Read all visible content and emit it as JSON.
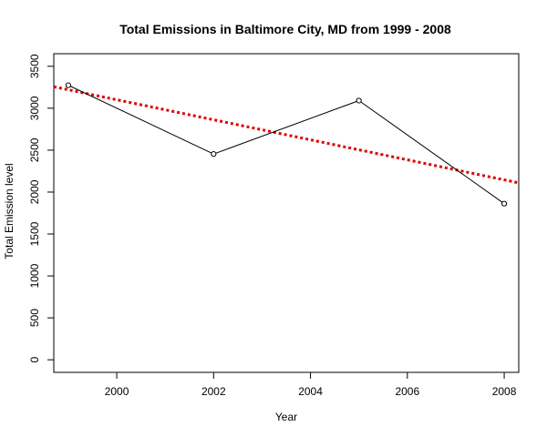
{
  "chart_data": {
    "type": "line",
    "title": "Total Emissions in Baltimore City, MD from 1999 - 2008",
    "xlabel": "Year",
    "ylabel": "Total Emission level",
    "x": [
      1999,
      2002,
      2005,
      2008
    ],
    "series": [
      {
        "values": [
          3274,
          2454,
          3091,
          1862
        ],
        "color": "#000000",
        "style": "line-with-open-circles"
      }
    ],
    "trend_line": {
      "style": "dotted",
      "color": "#dd0000",
      "x": [
        1998.7,
        2008.3
      ],
      "values": [
        3256,
        2110
      ]
    },
    "xlim": [
      1998.7,
      2008.3
    ],
    "ylim": [
      -150,
      3650
    ],
    "x_ticks": [
      2000,
      2002,
      2004,
      2006,
      2008
    ],
    "y_ticks": [
      0,
      500,
      1000,
      1500,
      2000,
      2500,
      3000,
      3500
    ],
    "grid": false,
    "legend": "none"
  }
}
